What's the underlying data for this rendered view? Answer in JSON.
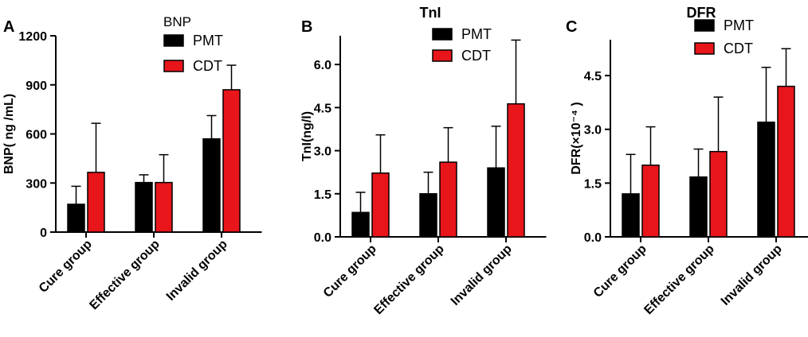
{
  "colors": {
    "pmt": "#000000",
    "cdt": "#e8151b",
    "axis": "#000000"
  },
  "chart_data": [
    {
      "type": "bar",
      "panel": "A",
      "title": "",
      "legend_title": "BNP",
      "ylabel": "BNP( ng /mL)",
      "ylim": [
        0,
        1200
      ],
      "yticks": [
        0,
        300,
        600,
        900,
        1200
      ],
      "tick_labels": [
        "0",
        "300",
        "600",
        "900",
        "1200"
      ],
      "categories": [
        "Cure group",
        "Effective group",
        "Invalid group"
      ],
      "series": [
        {
          "name": "PMT",
          "values": [
            170,
            303,
            570
          ],
          "errors": [
            110,
            47,
            142
          ]
        },
        {
          "name": "CDT",
          "values": [
            365,
            303,
            870
          ],
          "errors": [
            300,
            170,
            150
          ]
        }
      ]
    },
    {
      "type": "bar",
      "panel": "B",
      "title": "TnI",
      "legend_title": "",
      "ylabel": "TnI(ng/l)",
      "ylim": [
        0,
        7.0
      ],
      "yticks": [
        0,
        1.5,
        3.0,
        4.5,
        6.0
      ],
      "tick_labels": [
        "0.0",
        "1.5",
        "3.0",
        "4.5",
        "6.0"
      ],
      "categories": [
        "Cure group",
        "Effective group",
        "Invalid group"
      ],
      "series": [
        {
          "name": "PMT",
          "values": [
            0.85,
            1.5,
            2.4
          ],
          "errors": [
            0.7,
            0.75,
            1.45
          ]
        },
        {
          "name": "CDT",
          "values": [
            2.22,
            2.6,
            4.63
          ],
          "errors": [
            1.33,
            1.2,
            2.22
          ]
        }
      ]
    },
    {
      "type": "bar",
      "panel": "C",
      "title": "DFR",
      "legend_title": "",
      "ylabel": "DFR(×10⁻⁴ )",
      "ylim": [
        0,
        5.5
      ],
      "yticks": [
        0,
        1.5,
        3.0,
        4.5
      ],
      "tick_labels": [
        "0.0",
        "1.5",
        "3.0",
        "4.5"
      ],
      "categories": [
        "Cure group",
        "Effective group",
        "Invalid group"
      ],
      "series": [
        {
          "name": "PMT",
          "values": [
            1.2,
            1.67,
            3.2
          ],
          "errors": [
            1.1,
            0.78,
            1.53
          ]
        },
        {
          "name": "CDT",
          "values": [
            2.0,
            2.38,
            4.2
          ],
          "errors": [
            1.07,
            1.52,
            1.05
          ]
        }
      ]
    }
  ]
}
